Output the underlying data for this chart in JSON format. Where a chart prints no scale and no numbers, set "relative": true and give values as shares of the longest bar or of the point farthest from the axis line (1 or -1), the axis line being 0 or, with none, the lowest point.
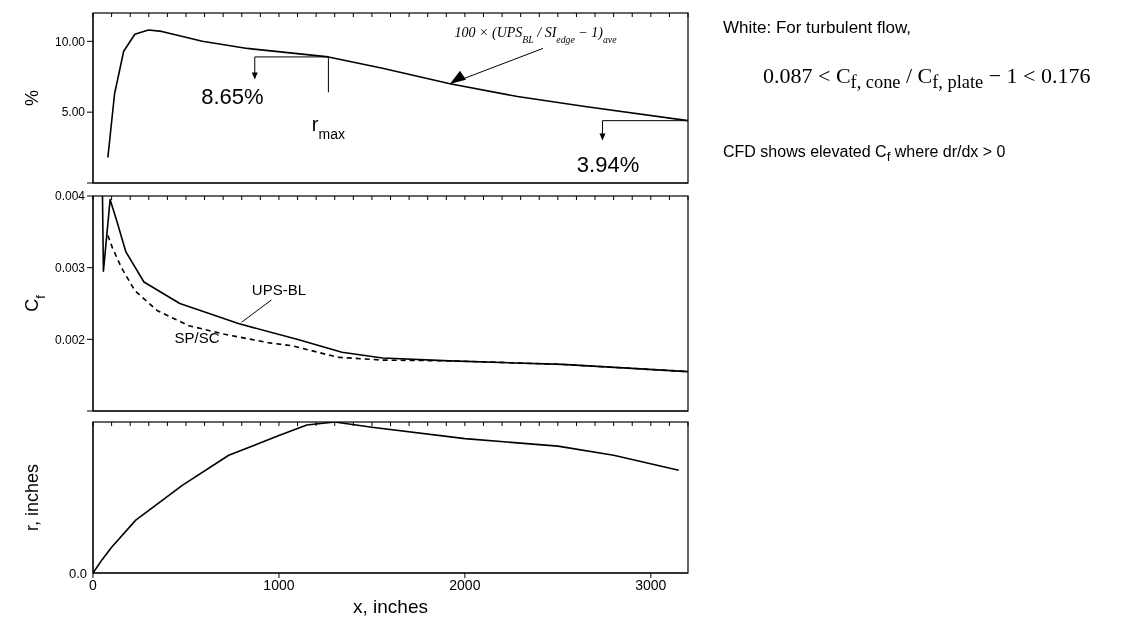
{
  "chart_data": [
    {
      "type": "line",
      "ylabel": "%",
      "xlim": [
        0,
        3200
      ],
      "xticks": [
        0,
        1000,
        2000,
        3000
      ],
      "ylim": [
        0,
        12
      ],
      "yticks": [
        {
          "value": 0,
          "label": null
        },
        {
          "value": 5,
          "label": "5.00"
        },
        {
          "value": 10,
          "label": "10.00"
        }
      ],
      "tick_labels": "y",
      "series": [
        {
          "color": "#000000",
          "x": [
            80,
            116,
            165,
            225,
            298,
            370,
            588,
            830,
            1266,
            1557,
            1920,
            2283,
            2646,
            3200
          ],
          "values": [
            1.8,
            6.3,
            9.3,
            10.5,
            10.8,
            10.7,
            10.0,
            9.5,
            8.9,
            8.1,
            7.0,
            6.1,
            5.4,
            4.4
          ]
        }
      ],
      "annotations": [
        {
          "text": "100 × (UPS$_{BL}$ / SI$_{edge}$ − 1)$_{ave}$",
          "x": 1920,
          "y": 7.0
        },
        {
          "text": "8.65%",
          "x": 1266,
          "y": 8.9
        },
        "r$_{max}$",
        {
          "text": "3.94%",
          "x": 3200,
          "y": 4.4
        }
      ]
    },
    {
      "type": "line",
      "ylabel": "C$_{f}$",
      "xlim": [
        0,
        3200
      ],
      "xticks": [
        0,
        1000,
        2000,
        3000
      ],
      "ylim": [
        0.001,
        0.004
      ],
      "yticks": [
        {
          "value": 0.001,
          "label": null
        },
        0.002,
        0.003,
        {
          "value": 0.004,
          "label": "0.004"
        }
      ],
      "tick_labels": "y",
      "series": [
        {
          "name": "UPS-BL",
          "color": "#000000",
          "x": [
            45,
            51,
            56,
            92,
            128,
            177,
            274,
            467,
            782,
            1097,
            1339,
            1557,
            1920,
            2525,
            3200
          ],
          "values": [
            0.004,
            0.004,
            0.00295,
            0.00395,
            0.00365,
            0.00322,
            0.0028,
            0.0025,
            0.00222,
            0.002,
            0.00182,
            0.00174,
            0.0017,
            0.00165,
            0.00155
          ]
        },
        {
          "name": "SP/SC",
          "color": "#000000",
          "line_style": "dashed",
          "x": [
            80,
            104,
            153,
            225,
            346,
            516,
            709,
            950,
            1073,
            1315,
            1557,
            1920,
            2525,
            3200
          ],
          "values": [
            0.00345,
            0.00328,
            0.003,
            0.00268,
            0.0024,
            0.00219,
            0.00207,
            0.00195,
            0.00191,
            0.00175,
            0.00171,
            0.0017,
            0.00165,
            0.00155
          ]
        }
      ]
    },
    {
      "type": "line",
      "xlabel": "x, inches",
      "ylabel": "r, inches",
      "relative": true,
      "xlim": [
        0,
        3200
      ],
      "xticks": [
        0,
        1000,
        2000,
        3000
      ],
      "tick_labels": "x",
      "series": [
        {
          "color": "#000000",
          "x": [
            0,
            50,
            100,
            230,
            480,
            730,
            1000,
            1150,
            1300,
            1500,
            2000,
            2500,
            2800,
            3150
          ],
          "values": [
            0,
            0.09,
            0.17,
            0.35,
            0.58,
            0.78,
            0.91,
            0.98,
            1.0,
            0.965,
            0.89,
            0.84,
            0.78,
            0.68
          ]
        }
      ],
      "annotations": [
        "0.0"
      ]
    },
    {
      "type": "other",
      "annotations": [
        "White: For turbulent flow,",
        "0.087 < C$_{f, cone}$ / C$_{f, plate}$ − 1 < 0.176",
        "CFD shows elevated C$_{f}$ where dr/dx > 0"
      ]
    }
  ]
}
